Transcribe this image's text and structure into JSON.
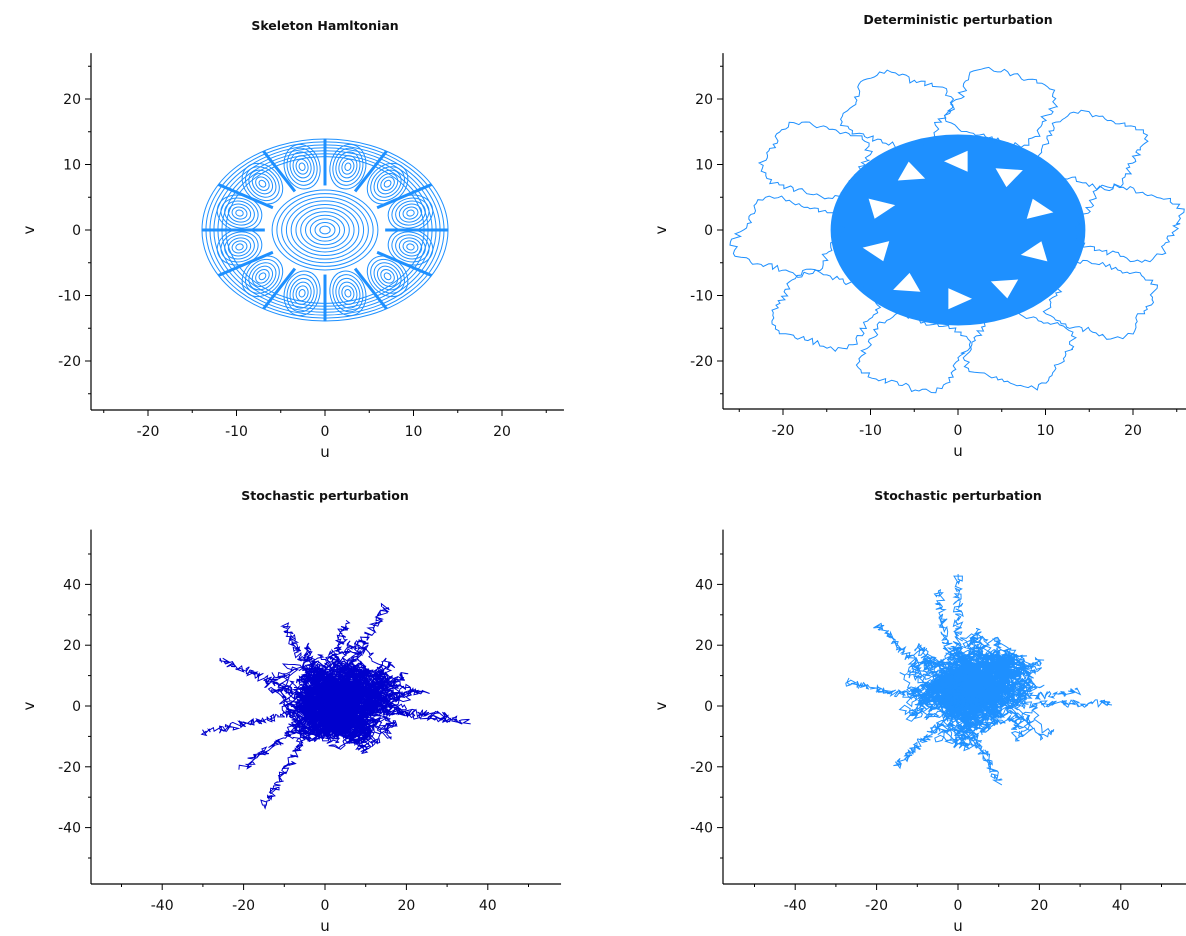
{
  "chart_data": [
    {
      "type": "line",
      "title": "Skeleton Hamltonian",
      "xlabel": "u",
      "ylabel": "v",
      "xlim": [
        -27,
        27
      ],
      "ylim": [
        -27,
        27
      ],
      "xticks": [
        -20,
        -10,
        0,
        10,
        20
      ],
      "yticks": [
        -20,
        -10,
        0,
        10,
        20
      ],
      "xtick_labels": [
        "-20",
        "-10",
        "0",
        "10",
        "20"
      ],
      "ytick_labels": [
        "-20",
        "-10",
        "0",
        "10",
        "20"
      ],
      "grid": false,
      "series": [
        {
          "kind": "closed_orbits",
          "color": "#1e90ff",
          "x": [
            14,
            13.5,
            12.1,
            9.9,
            7,
            3.6,
            0,
            -3.6,
            -7,
            -9.9,
            -12.1,
            -13.5,
            -14,
            -13.5,
            -12.1,
            -9.9,
            -7,
            -3.6,
            0,
            3.6,
            7,
            9.9,
            12.1,
            13.5,
            14
          ],
          "y": [
            0,
            3.6,
            7,
            9.9,
            12.1,
            13.5,
            14,
            13.5,
            12.1,
            9.9,
            7,
            3.6,
            0,
            -3.6,
            -7,
            -9.9,
            -12.1,
            -13.5,
            -14,
            -13.5,
            -12.1,
            -9.9,
            -7,
            -3.6,
            0
          ],
          "islands": 12,
          "island_center_radius": 10,
          "core_radius": 6.5
        }
      ]
    },
    {
      "type": "line",
      "title": "Deterministic perturbation",
      "xlabel": "u",
      "ylabel": "v",
      "xlim": [
        -27,
        27
      ],
      "ylim": [
        -27,
        27
      ],
      "xticks": [
        -20,
        -10,
        0,
        10,
        20
      ],
      "yticks": [
        -20,
        -10,
        0,
        10,
        20
      ],
      "xtick_labels": [
        "-20",
        "-10",
        "0",
        "10",
        "20"
      ],
      "ytick_labels": [
        "-20",
        "-10",
        "0",
        "10",
        "20"
      ],
      "grid": false,
      "series": [
        {
          "kind": "chaotic_sea_with_lobes",
          "color": "#1e90ff",
          "sea_half_width": 14.5,
          "sea_half_height": 14.5,
          "lobes": 10,
          "lobe_center_radius": 19.5,
          "lobe_radius": 5.5,
          "x": [
            -14.5,
            0,
            14.5,
            0,
            -14.5
          ],
          "y": [
            0,
            14.5,
            0,
            -14.5,
            0
          ]
        }
      ]
    },
    {
      "type": "line",
      "title": "Stochastic perturbation",
      "xlabel": "u",
      "ylabel": "v",
      "xlim": [
        -58,
        58
      ],
      "ylim": [
        -58,
        58
      ],
      "xticks": [
        -40,
        -20,
        0,
        20,
        40
      ],
      "yticks": [
        -40,
        -20,
        0,
        20,
        40
      ],
      "xtick_labels": [
        "-40",
        "-20",
        "0",
        "20",
        "40"
      ],
      "ytick_labels": [
        "-40",
        "-20",
        "0",
        "20",
        "40"
      ],
      "grid": false,
      "series": [
        {
          "kind": "random_walk_cloud",
          "color": "#0000cd",
          "seed": 7,
          "x": [
            -30,
            -25,
            -20,
            -15,
            -10,
            -5,
            0,
            5,
            10,
            15,
            20,
            25,
            30,
            35
          ],
          "y": [
            -9,
            15,
            -20,
            -33,
            27,
            20,
            0,
            27,
            -15,
            33,
            10,
            5,
            -3,
            -5
          ],
          "extent_x": [
            -31,
            37
          ],
          "extent_y": [
            -35,
            34
          ]
        }
      ]
    },
    {
      "type": "line",
      "title": "Stochastic perturbation",
      "xlabel": "u",
      "ylabel": "v",
      "xlim": [
        -58,
        58
      ],
      "ylim": [
        -58,
        58
      ],
      "xticks": [
        -40,
        -20,
        0,
        20,
        40
      ],
      "yticks": [
        -40,
        -20,
        0,
        20,
        40
      ],
      "xtick_labels": [
        "-40",
        "-20",
        "0",
        "20",
        "40"
      ],
      "ytick_labels": [
        "-40",
        "-20",
        "0",
        "20",
        "40"
      ],
      "grid": false,
      "series": [
        {
          "kind": "random_walk_cloud",
          "color": "#1e90ff",
          "seed": 23,
          "x": [
            -28,
            -20,
            -15,
            -10,
            -5,
            0,
            5,
            10,
            20,
            30,
            38
          ],
          "y": [
            8,
            27,
            -20,
            20,
            38,
            43,
            25,
            -25,
            15,
            5,
            1
          ],
          "extent_x": [
            -28,
            38
          ],
          "extent_y": [
            -30,
            43
          ]
        }
      ]
    }
  ]
}
